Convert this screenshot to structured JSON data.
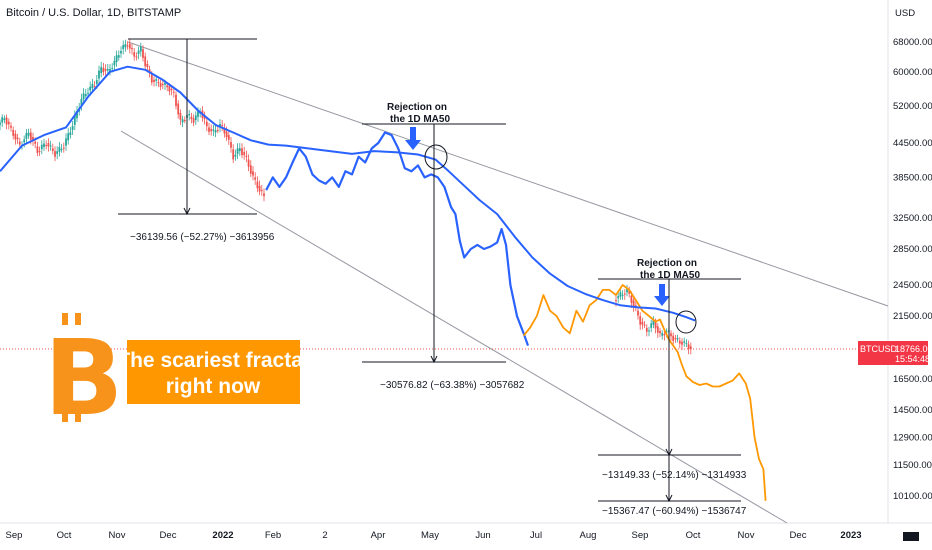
{
  "chart_data": {
    "type": "line",
    "title": "Bitcoin / U.S. Dollar, 1D, BITSTAMP",
    "currency": "USD",
    "symbol": "BTCUSD",
    "last_price": "18766.00",
    "countdown": "15:54:48",
    "y_ticks": [
      {
        "label": "68000.00",
        "value": 68000
      },
      {
        "label": "60000.00",
        "value": 60000
      },
      {
        "label": "52000.00",
        "value": 52000
      },
      {
        "label": "44500.00",
        "value": 44500
      },
      {
        "label": "38500.00",
        "value": 38500
      },
      {
        "label": "32500.00",
        "value": 32500
      },
      {
        "label": "28500.00",
        "value": 28500
      },
      {
        "label": "24500.00",
        "value": 24500
      },
      {
        "label": "21500.00",
        "value": 21500
      },
      {
        "label": "16500.00",
        "value": 16500
      },
      {
        "label": "14500.00",
        "value": 14500
      },
      {
        "label": "12900.00",
        "value": 12900
      },
      {
        "label": "11500.00",
        "value": 11500
      },
      {
        "label": "10100.00",
        "value": 10100
      }
    ],
    "x_ticks": [
      {
        "label": "Sep",
        "bold": false
      },
      {
        "label": "Oct",
        "bold": false
      },
      {
        "label": "Nov",
        "bold": false
      },
      {
        "label": "Dec",
        "bold": false
      },
      {
        "label": "2022",
        "bold": true
      },
      {
        "label": "Feb",
        "bold": false
      },
      {
        "label": "2",
        "bold": false
      },
      {
        "label": "Apr",
        "bold": false
      },
      {
        "label": "May",
        "bold": false
      },
      {
        "label": "Jun",
        "bold": false
      },
      {
        "label": "Jul",
        "bold": false
      },
      {
        "label": "Aug",
        "bold": false
      },
      {
        "label": "Sep",
        "bold": false
      },
      {
        "label": "Oct",
        "bold": false
      },
      {
        "label": "Nov",
        "bold": false
      },
      {
        "label": "Dec",
        "bold": false
      },
      {
        "label": "2023",
        "bold": true
      }
    ],
    "ma50_label": "1D MA50",
    "series": [
      {
        "role": "price candles (bitcoin 2021-2022)",
        "color_up": "#26a69a",
        "color_down": "#ef5350",
        "points": [
          [
            0,
            48000
          ],
          [
            3,
            49500
          ],
          [
            6,
            47000
          ],
          [
            10,
            44000
          ],
          [
            14,
            46500
          ],
          [
            18,
            43000
          ],
          [
            22,
            44500
          ],
          [
            26,
            42500
          ],
          [
            30,
            44000
          ],
          [
            34,
            48000
          ],
          [
            38,
            53500
          ],
          [
            41,
            55500
          ],
          [
            44,
            57000
          ],
          [
            47,
            61000
          ],
          [
            50,
            60000
          ],
          [
            53,
            62500
          ],
          [
            56,
            66000
          ],
          [
            59,
            67500
          ],
          [
            62,
            64000
          ],
          [
            65,
            66000
          ],
          [
            67,
            62000
          ],
          [
            70,
            58000
          ],
          [
            74,
            57000
          ],
          [
            77,
            56500
          ],
          [
            80,
            54500
          ],
          [
            83,
            48500
          ],
          [
            86,
            50000
          ],
          [
            89,
            49000
          ],
          [
            92,
            51000
          ],
          [
            95,
            47500
          ],
          [
            98,
            46500
          ],
          [
            101,
            48000
          ],
          [
            104,
            46000
          ],
          [
            107,
            42000
          ],
          [
            110,
            43500
          ],
          [
            113,
            41500
          ],
          [
            116,
            38500
          ],
          [
            119,
            36500
          ],
          [
            121,
            35500
          ]
        ]
      },
      {
        "role": "fractal copy (blue)",
        "color": "#2962ff",
        "points": [
          [
            121,
            36500
          ],
          [
            124,
            38500
          ],
          [
            127,
            37000
          ],
          [
            130,
            38500
          ],
          [
            133,
            41000
          ],
          [
            136,
            43500
          ],
          [
            139,
            42000
          ],
          [
            142,
            39000
          ],
          [
            145,
            38000
          ],
          [
            148,
            37500
          ],
          [
            151,
            38500
          ],
          [
            154,
            37000
          ],
          [
            157,
            39500
          ],
          [
            160,
            39000
          ],
          [
            163,
            42000
          ],
          [
            166,
            41000
          ],
          [
            169,
            43500
          ],
          [
            172,
            44500
          ],
          [
            175,
            46500
          ],
          [
            178,
            46000
          ],
          [
            181,
            43500
          ],
          [
            184,
            40000
          ],
          [
            187,
            39500
          ],
          [
            190,
            40500
          ],
          [
            193,
            38500
          ],
          [
            196,
            39000
          ],
          [
            199,
            38500
          ],
          [
            202,
            37000
          ],
          [
            205,
            34000
          ],
          [
            207,
            33000
          ],
          [
            209,
            29500
          ],
          [
            211,
            27500
          ],
          [
            214,
            28500
          ],
          [
            217,
            29000
          ],
          [
            220,
            28500
          ],
          [
            223,
            28800
          ],
          [
            226,
            29300
          ],
          [
            228,
            31000
          ],
          [
            230,
            29000
          ],
          [
            232,
            24500
          ],
          [
            235,
            21500
          ],
          [
            238,
            20000
          ],
          [
            240,
            19000
          ]
        ]
      },
      {
        "role": "fractal copy (orange)",
        "color": "#ff9800",
        "points": [
          [
            238,
            19800
          ],
          [
            241,
            20500
          ],
          [
            244,
            21500
          ],
          [
            247,
            23500
          ],
          [
            250,
            22000
          ],
          [
            253,
            21500
          ],
          [
            256,
            20500
          ],
          [
            259,
            20000
          ],
          [
            262,
            22000
          ],
          [
            265,
            21000
          ],
          [
            268,
            22500
          ],
          [
            271,
            23000
          ],
          [
            274,
            24000
          ],
          [
            277,
            24000
          ],
          [
            280,
            23500
          ],
          [
            283,
            24500
          ],
          [
            286,
            24000
          ],
          [
            289,
            23000
          ],
          [
            292,
            22000
          ],
          [
            295,
            21500
          ],
          [
            298,
            21000
          ],
          [
            300,
            21200
          ],
          [
            302,
            20300
          ],
          [
            304,
            19500
          ],
          [
            306,
            19000
          ],
          [
            308,
            18500
          ],
          [
            310,
            17500
          ],
          [
            312,
            16700
          ],
          [
            315,
            16300
          ],
          [
            318,
            16100
          ],
          [
            321,
            16200
          ],
          [
            324,
            16000
          ],
          [
            327,
            16000
          ],
          [
            330,
            16200
          ],
          [
            333,
            16400
          ],
          [
            336,
            16900
          ],
          [
            339,
            16200
          ],
          [
            341,
            15200
          ],
          [
            343,
            12900
          ],
          [
            345,
            11800
          ],
          [
            347,
            11300
          ],
          [
            348,
            9900
          ]
        ]
      },
      {
        "role": "price candles (recent)",
        "color_up": "#26a69a",
        "color_down": "#ef5350",
        "points": [
          [
            280,
            23000
          ],
          [
            283,
            23500
          ],
          [
            286,
            23900
          ],
          [
            289,
            22500
          ],
          [
            292,
            21000
          ],
          [
            295,
            20200
          ],
          [
            298,
            21000
          ],
          [
            301,
            19800
          ],
          [
            304,
            20200
          ],
          [
            307,
            19600
          ],
          [
            310,
            19300
          ],
          [
            313,
            19100
          ],
          [
            315,
            18766
          ]
        ]
      },
      {
        "role": "1D MA50",
        "color": "#2962ff",
        "points": [
          [
            0,
            39500
          ],
          [
            10,
            44000
          ],
          [
            20,
            46000
          ],
          [
            30,
            47500
          ],
          [
            40,
            54000
          ],
          [
            50,
            60000
          ],
          [
            58,
            61300
          ],
          [
            66,
            60500
          ],
          [
            74,
            58000
          ],
          [
            82,
            55000
          ],
          [
            90,
            51000
          ],
          [
            98,
            48000
          ],
          [
            106,
            46500
          ],
          [
            114,
            45000
          ],
          [
            122,
            44200
          ],
          [
            130,
            44000
          ],
          [
            140,
            43500
          ],
          [
            150,
            43000
          ],
          [
            160,
            42500
          ],
          [
            170,
            43000
          ],
          [
            180,
            42800
          ],
          [
            190,
            42400
          ],
          [
            198,
            41500
          ],
          [
            204,
            39500
          ],
          [
            210,
            37500
          ],
          [
            218,
            35000
          ],
          [
            226,
            33000
          ],
          [
            234,
            30000
          ],
          [
            242,
            27500
          ],
          [
            250,
            25700
          ],
          [
            258,
            24400
          ],
          [
            266,
            23600
          ],
          [
            274,
            23000
          ],
          [
            282,
            22500
          ],
          [
            290,
            22300
          ],
          [
            298,
            22200
          ],
          [
            306,
            21800
          ],
          [
            312,
            21400
          ],
          [
            316,
            21100
          ]
        ]
      }
    ]
  },
  "logo_text": "B",
  "banner": {
    "line1": "The scariest fractal",
    "line2": "right now"
  },
  "annotations": {
    "rejection1_line1": "Rejection on",
    "rejection1_line2": "the 1D MA50",
    "rejection2_line1": "Rejection on",
    "rejection2_line2": "the 1D MA50",
    "measure1": "−36139.56 (−52.27%) −3613956",
    "measure2": "−30576.82 (−63.38%) −3057682",
    "measure3": "−13149.33 (−52.14%) −1314933",
    "measure4": "−15367.47 (−60.94%) −1536747"
  },
  "colors": {
    "bull": "#26a69a",
    "bear": "#ef5350",
    "fractal_blue": "#2962ff",
    "fractal_orange": "#ff9800",
    "label_red": "#f23645",
    "logo_orange": "#f7931a"
  }
}
